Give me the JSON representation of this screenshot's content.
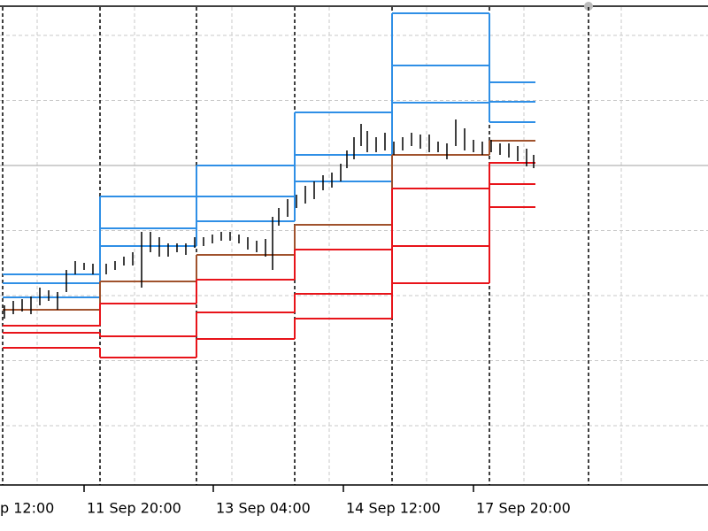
{
  "chart_data": {
    "type": "pivot",
    "xlim": [
      0,
      800
    ],
    "ylim": [
      0,
      540
    ],
    "xticks": [
      {
        "value": -3,
        "label": "p 12:00"
      },
      {
        "value": 95,
        "label": "11 Sep 20:00"
      },
      {
        "value": 241,
        "label": "13 Sep 04:00"
      },
      {
        "value": 388,
        "label": "14 Sep 12:00"
      },
      {
        "value": 535,
        "label": "17 Sep 20:00"
      }
    ],
    "separators": [
      3,
      113,
      222,
      333,
      443,
      553,
      665
    ],
    "price_line": 361,
    "x_edges": [
      3,
      113,
      222,
      333,
      443,
      553,
      605
    ],
    "series": [
      {
        "color": "#2f8fe6",
        "values": [
          238,
          326,
          361,
          421,
          533,
          455
        ]
      },
      {
        "color": "#2f8fe6",
        "values": [
          228,
          290,
          326,
          373,
          474,
          433
        ]
      },
      {
        "color": "#2f8fe6",
        "values": [
          212,
          270,
          298,
          343,
          432,
          410
        ]
      },
      {
        "color": "#a0522d",
        "values": [
          198,
          230,
          260,
          294,
          373,
          389
        ]
      },
      {
        "color": "#e8141a",
        "values": [
          180,
          205,
          232,
          266,
          335,
          364
        ]
      },
      {
        "color": "#e8141a",
        "values": [
          172,
          168,
          195,
          216,
          270,
          340
        ]
      },
      {
        "color": "#e8141a",
        "values": [
          155,
          144,
          165,
          188,
          228,
          314
        ]
      }
    ],
    "bars": {
      "color": "#000000",
      "x": [
        5,
        15,
        25,
        35,
        45,
        55,
        65,
        75,
        85,
        95,
        105,
        120,
        130,
        140,
        150,
        160,
        170,
        180,
        190,
        200,
        210,
        220,
        230,
        240,
        250,
        260,
        270,
        280,
        290,
        300,
        308,
        315,
        325,
        335,
        345,
        355,
        365,
        375,
        385,
        392,
        400,
        408,
        415,
        425,
        435,
        445,
        455,
        465,
        475,
        485,
        495,
        505,
        515,
        525,
        535,
        545,
        555,
        565,
        575,
        585,
        595,
        603
      ],
      "high": [
        203,
        208,
        210,
        213,
        223,
        220,
        218,
        243,
        253,
        251,
        250,
        250,
        253,
        258,
        263,
        286,
        286,
        280,
        273,
        273,
        273,
        280,
        280,
        283,
        286,
        286,
        283,
        280,
        276,
        278,
        303,
        313,
        323,
        328,
        338,
        343,
        350,
        353,
        363,
        378,
        393,
        408,
        400,
        393,
        398,
        388,
        393,
        398,
        396,
        396,
        388,
        386,
        413,
        403,
        390,
        388,
        390,
        386,
        386,
        383,
        380,
        373
      ],
      "low": [
        188,
        193,
        196,
        193,
        203,
        208,
        198,
        218,
        238,
        243,
        238,
        238,
        243,
        248,
        248,
        223,
        263,
        258,
        258,
        263,
        260,
        268,
        270,
        273,
        276,
        276,
        273,
        266,
        263,
        258,
        243,
        293,
        303,
        313,
        318,
        323,
        333,
        336,
        343,
        358,
        368,
        383,
        376,
        376,
        378,
        373,
        378,
        383,
        380,
        376,
        376,
        368,
        383,
        378,
        376,
        373,
        376,
        373,
        370,
        366,
        360,
        358
      ]
    }
  }
}
